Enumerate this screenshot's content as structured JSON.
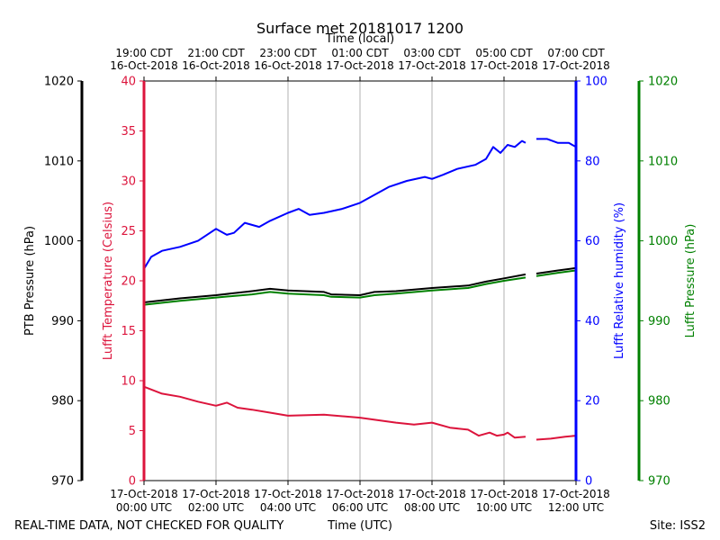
{
  "chart_data": {
    "type": "line",
    "title": "Surface met 20181017 1200",
    "top_axis_title": "Time (local)",
    "bottom_axis_title": "Time (UTC)",
    "footer_left": "REAL-TIME DATA, NOT CHECKED FOR QUALITY",
    "footer_right": "Site: ISS2",
    "x_range_hours": [
      0,
      12
    ],
    "utc_ticks": [
      {
        "h": 0,
        "date": "17-Oct-2018",
        "time": "00:00 UTC"
      },
      {
        "h": 2,
        "date": "17-Oct-2018",
        "time": "02:00 UTC"
      },
      {
        "h": 4,
        "date": "17-Oct-2018",
        "time": "04:00 UTC"
      },
      {
        "h": 6,
        "date": "17-Oct-2018",
        "time": "06:00 UTC"
      },
      {
        "h": 8,
        "date": "17-Oct-2018",
        "time": "08:00 UTC"
      },
      {
        "h": 10,
        "date": "17-Oct-2018",
        "time": "10:00 UTC"
      },
      {
        "h": 12,
        "date": "17-Oct-2018",
        "time": "12:00 UTC"
      }
    ],
    "local_ticks": [
      {
        "h": 0,
        "time": "19:00 CDT",
        "date": "16-Oct-2018"
      },
      {
        "h": 2,
        "time": "21:00 CDT",
        "date": "16-Oct-2018"
      },
      {
        "h": 4,
        "time": "23:00 CDT",
        "date": "16-Oct-2018"
      },
      {
        "h": 6,
        "time": "01:00 CDT",
        "date": "17-Oct-2018"
      },
      {
        "h": 8,
        "time": "03:00 CDT",
        "date": "17-Oct-2018"
      },
      {
        "h": 10,
        "time": "05:00 CDT",
        "date": "17-Oct-2018"
      },
      {
        "h": 12,
        "time": "07:00 CDT",
        "date": "17-Oct-2018"
      }
    ],
    "axes": {
      "ptb_pressure": {
        "label": "PTB Pressure (hPa)",
        "range": [
          970,
          1020
        ],
        "ticks": [
          970,
          980,
          990,
          1000,
          1010,
          1020
        ],
        "color": "#000000"
      },
      "temperature": {
        "label": "Lufft Temperature (Celsius)",
        "range": [
          0,
          40
        ],
        "ticks": [
          0,
          5,
          10,
          15,
          20,
          25,
          30,
          35,
          40
        ],
        "color": "#dc143c"
      },
      "humidity": {
        "label": "Lufft Relative humidity (%)",
        "range": [
          0,
          100
        ],
        "ticks": [
          0,
          20,
          40,
          60,
          80,
          100
        ],
        "color": "#0000ff"
      },
      "lufft_pressure": {
        "label": "Lufft Pressure (hPa)",
        "range": [
          970,
          1020
        ],
        "ticks": [
          970,
          980,
          990,
          1000,
          1010,
          1020
        ],
        "color": "#008000"
      }
    },
    "series": [
      {
        "name": "Lufft Relative humidity",
        "axis": "humidity",
        "color": "#0000ff",
        "segments": [
          [
            [
              0,
              53
            ],
            [
              0.2,
              56
            ],
            [
              0.5,
              57.5
            ],
            [
              1,
              58.5
            ],
            [
              1.5,
              60
            ],
            [
              2,
              63
            ],
            [
              2.3,
              61.5
            ],
            [
              2.5,
              62
            ],
            [
              2.8,
              64.5
            ],
            [
              3.2,
              63.5
            ],
            [
              3.5,
              65
            ],
            [
              4,
              67
            ],
            [
              4.3,
              68
            ],
            [
              4.6,
              66.5
            ],
            [
              5,
              67
            ],
            [
              5.5,
              68
            ],
            [
              6,
              69.5
            ],
            [
              6.3,
              71
            ],
            [
              6.8,
              73.5
            ],
            [
              7.3,
              75
            ],
            [
              7.8,
              76
            ],
            [
              8,
              75.5
            ],
            [
              8.3,
              76.5
            ],
            [
              8.7,
              78
            ],
            [
              9.2,
              79
            ],
            [
              9.5,
              80.5
            ],
            [
              9.7,
              83.5
            ],
            [
              9.9,
              82
            ],
            [
              10.1,
              84
            ],
            [
              10.3,
              83.5
            ],
            [
              10.5,
              85
            ],
            [
              10.6,
              84.5
            ]
          ],
          [
            [
              10.9,
              85.5
            ],
            [
              11.2,
              85.5
            ],
            [
              11.5,
              84.5
            ],
            [
              11.8,
              84.5
            ],
            [
              12,
              83.5
            ]
          ]
        ]
      },
      {
        "name": "PTB Pressure",
        "axis": "ptb_pressure",
        "color": "#000000",
        "segments": [
          [
            [
              0,
              992.3
            ],
            [
              1,
              992.8
            ],
            [
              2,
              993.2
            ],
            [
              3,
              993.7
            ],
            [
              3.5,
              994.0
            ],
            [
              4,
              993.8
            ],
            [
              5,
              993.6
            ],
            [
              5.2,
              993.3
            ],
            [
              6,
              993.2
            ],
            [
              6.4,
              993.6
            ],
            [
              7,
              993.7
            ],
            [
              8,
              994.1
            ],
            [
              9,
              994.4
            ],
            [
              9.5,
              994.9
            ],
            [
              10,
              995.3
            ],
            [
              10.6,
              995.8
            ]
          ],
          [
            [
              10.9,
              995.9
            ],
            [
              11.5,
              996.3
            ],
            [
              12,
              996.6
            ]
          ]
        ]
      },
      {
        "name": "Lufft Pressure",
        "axis": "lufft_pressure",
        "color": "#008000",
        "segments": [
          [
            [
              0,
              992.0
            ],
            [
              1,
              992.5
            ],
            [
              2,
              992.9
            ],
            [
              3,
              993.3
            ],
            [
              3.5,
              993.6
            ],
            [
              4,
              993.4
            ],
            [
              5,
              993.2
            ],
            [
              5.2,
              993.0
            ],
            [
              6,
              992.9
            ],
            [
              6.4,
              993.2
            ],
            [
              7,
              993.4
            ],
            [
              8,
              993.8
            ],
            [
              9,
              994.1
            ],
            [
              9.5,
              994.6
            ],
            [
              10,
              995.0
            ],
            [
              10.6,
              995.4
            ]
          ],
          [
            [
              10.9,
              995.6
            ],
            [
              11.5,
              996.0
            ],
            [
              12,
              996.3
            ]
          ]
        ]
      },
      {
        "name": "Lufft Temperature",
        "axis": "temperature",
        "color": "#dc143c",
        "segments": [
          [
            [
              0,
              9.4
            ],
            [
              0.5,
              8.7
            ],
            [
              1,
              8.4
            ],
            [
              1.5,
              7.9
            ],
            [
              2,
              7.5
            ],
            [
              2.3,
              7.8
            ],
            [
              2.6,
              7.3
            ],
            [
              3,
              7.1
            ],
            [
              3.5,
              6.8
            ],
            [
              4,
              6.5
            ],
            [
              5,
              6.6
            ],
            [
              6,
              6.3
            ],
            [
              7,
              5.8
            ],
            [
              7.5,
              5.6
            ],
            [
              8,
              5.8
            ],
            [
              8.5,
              5.3
            ],
            [
              9,
              5.1
            ],
            [
              9.3,
              4.5
            ],
            [
              9.6,
              4.8
            ],
            [
              9.8,
              4.5
            ],
            [
              10,
              4.6
            ],
            [
              10.1,
              4.8
            ],
            [
              10.3,
              4.3
            ],
            [
              10.6,
              4.4
            ]
          ],
          [
            [
              10.9,
              4.1
            ],
            [
              11.3,
              4.2
            ],
            [
              11.7,
              4.4
            ],
            [
              12,
              4.5
            ]
          ]
        ]
      }
    ]
  }
}
